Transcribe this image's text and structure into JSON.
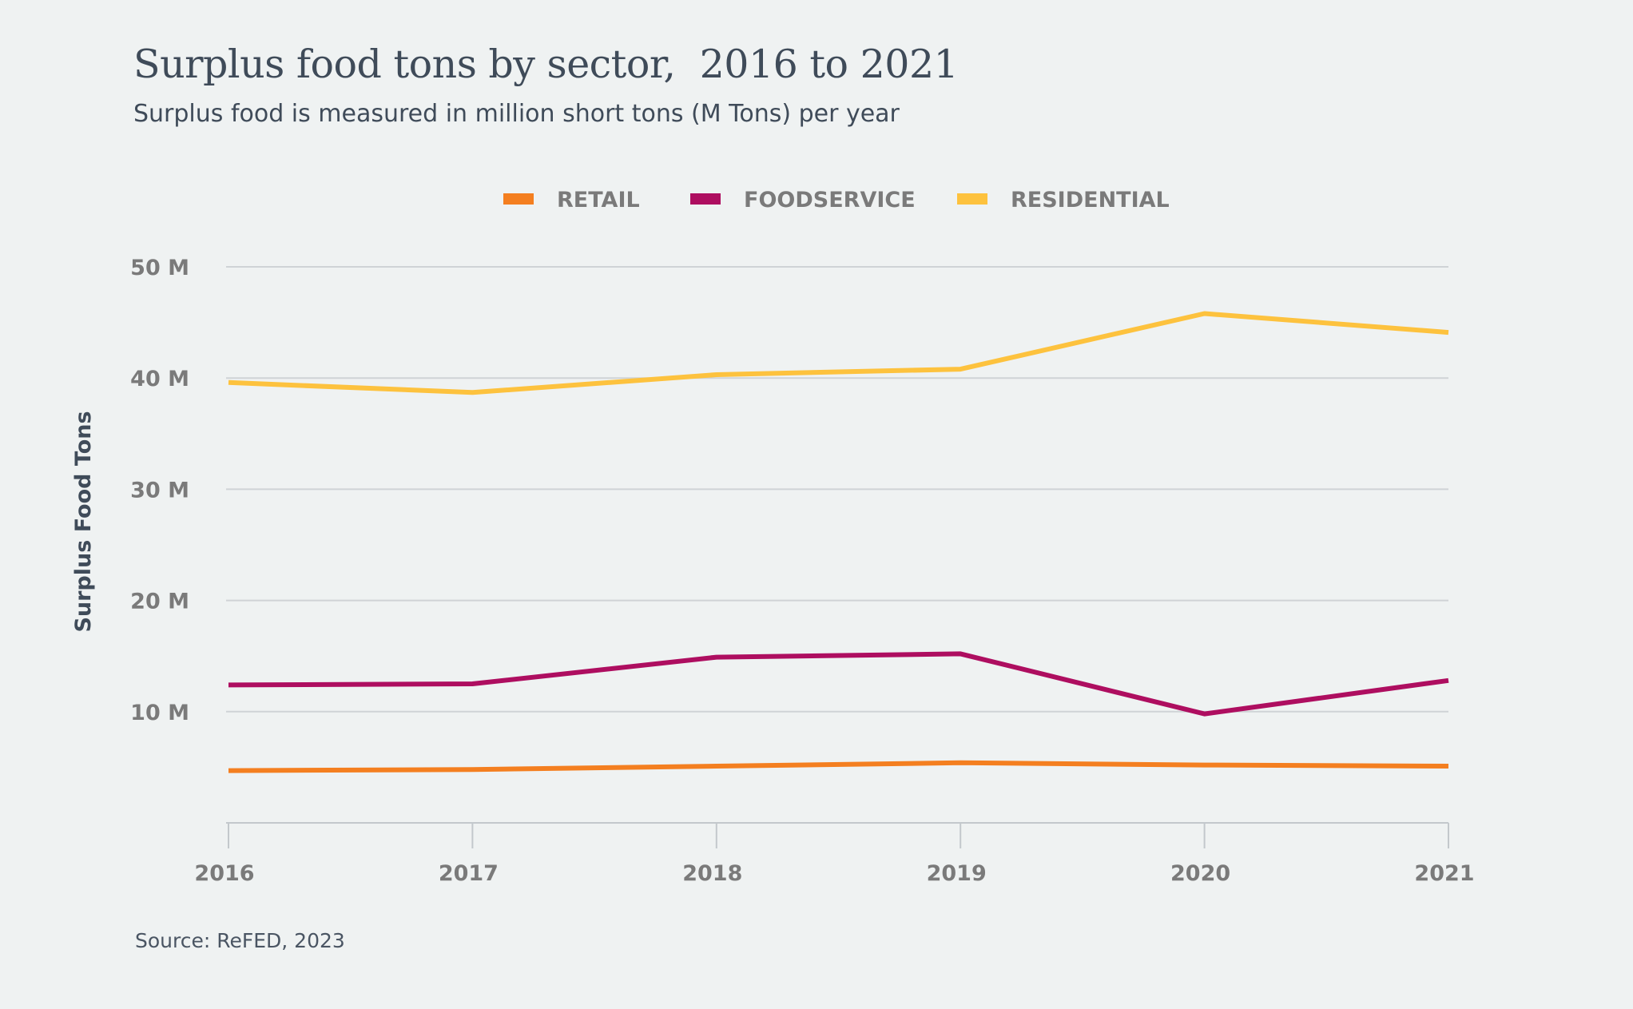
{
  "title": "Surplus food tons by sector,  2016 to 2021",
  "subtitle": "Surplus food is measured in million short tons (M Tons) per year",
  "source": "Source: ReFED, 2023",
  "chart_data": {
    "type": "line",
    "title": "Surplus food tons by sector,  2016 to 2021",
    "subtitle": "Surplus food is measured in million short tons (M Tons) per year",
    "xlabel": "",
    "ylabel": "Surplus Food Tons",
    "x": [
      "2016",
      "2017",
      "2018",
      "2019",
      "2020",
      "2021"
    ],
    "ylim": [
      0,
      50
    ],
    "yticks": [
      10,
      20,
      30,
      40,
      50
    ],
    "ytick_labels": [
      "10 M",
      "20 M",
      "30 M",
      "40 M",
      "50 M"
    ],
    "grid": true,
    "legend_position": "top",
    "series": [
      {
        "name": "RETAIL",
        "color": "#f47f20",
        "values": [
          4.7,
          4.8,
          5.1,
          5.4,
          5.2,
          5.1
        ]
      },
      {
        "name": "FOODSERVICE",
        "color": "#ae0e60",
        "values": [
          12.4,
          12.5,
          14.9,
          15.2,
          9.8,
          12.8
        ]
      },
      {
        "name": "RESIDENTIAL",
        "color": "#fdc23e",
        "values": [
          39.6,
          38.7,
          40.3,
          40.8,
          45.8,
          44.1
        ]
      }
    ]
  }
}
